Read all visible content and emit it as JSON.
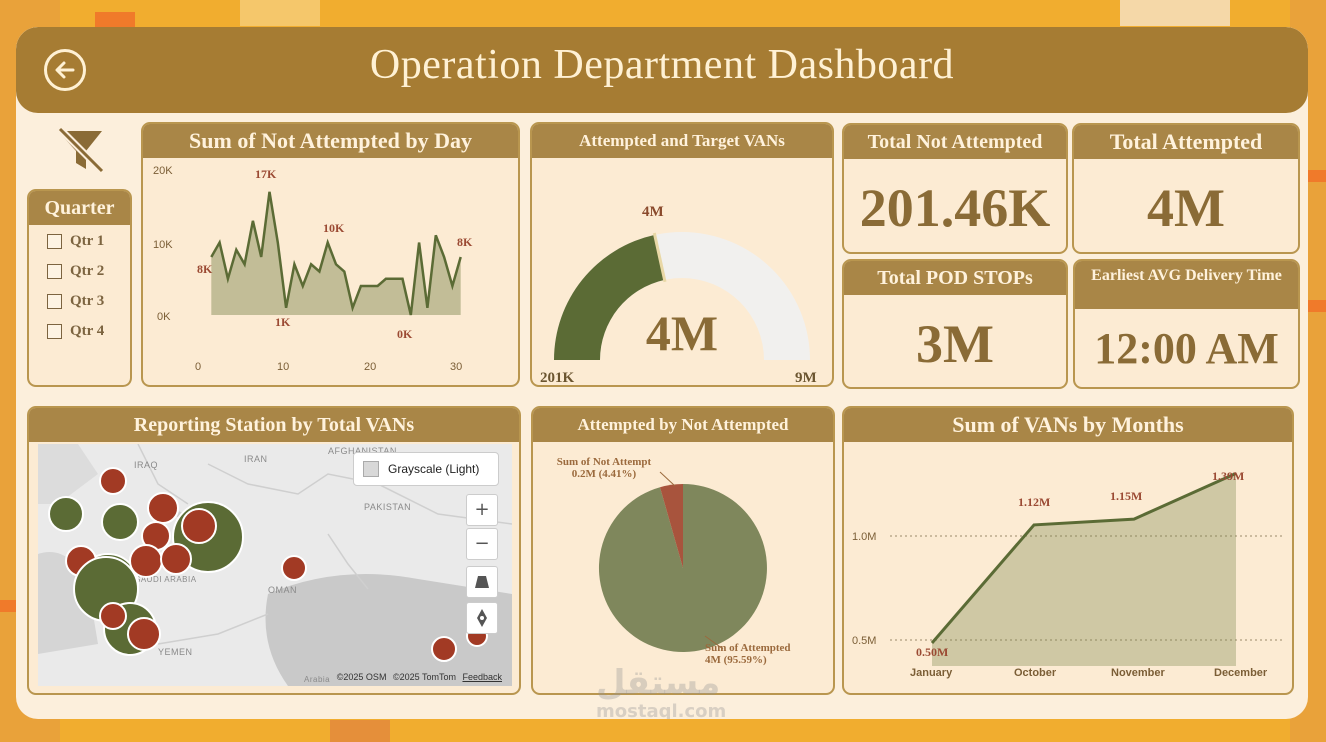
{
  "header": {
    "title": "Operation Department Dashboard",
    "back_icon": "arrow-left-icon"
  },
  "slicer": {
    "title": "Quarter",
    "items": [
      "Qtr 1",
      "Qtr 2",
      "Qtr 3",
      "Qtr 4"
    ],
    "clear_filter_icon": "filter-clear-icon"
  },
  "daily_chart": {
    "title": "Sum of Not Attempted by Day",
    "y_ticks": [
      "20K",
      "10K",
      "0K"
    ],
    "x_ticks": [
      "0",
      "10",
      "20",
      "30"
    ],
    "data_labels": [
      "17K",
      "10K",
      "8K",
      "8K",
      "1K",
      "0K"
    ]
  },
  "gauge": {
    "title": "Attempted and Target VANs",
    "value_label": "4M",
    "target_label": "4M",
    "min_label": "201K",
    "max_label": "9M"
  },
  "kpis": {
    "total_not_attempted": {
      "title": "Total Not Attempted",
      "value": "201.46K"
    },
    "total_attempted": {
      "title": "Total Attempted",
      "value": "4M"
    },
    "total_pod_stops": {
      "title": "Total POD STOPs",
      "value": "3M"
    },
    "earliest_delivery": {
      "title": "Earliest AVG Delivery Time",
      "value": "12:00 AM"
    }
  },
  "map": {
    "title": "Reporting Station by Total VANs",
    "style_button": "Grayscale (Light)",
    "labels": [
      "IRAQ",
      "IRAN",
      "AFGHANISTAN",
      "PAKISTAN",
      "SAUDI ARABIA",
      "OMAN",
      "YEMEN",
      "Arabia"
    ],
    "attribution": [
      "©2025 OSM",
      "©2025 TomTom",
      "Feedback"
    ],
    "zoom_in": "+",
    "zoom_out": "−"
  },
  "pie": {
    "title": "Attempted by Not Attempted",
    "slices": [
      {
        "label": "Sum of Not Attempt",
        "value": "0.2M (4.41%)"
      },
      {
        "label": "Sum of Attempted",
        "value": "4M (95.59%)"
      }
    ]
  },
  "months_chart": {
    "title": "Sum of VANs by Months",
    "y_ticks": [
      "1.0M",
      "0.5M"
    ],
    "categories": [
      "January",
      "October",
      "November",
      "December"
    ],
    "data_labels": [
      "0.50M",
      "1.12M",
      "1.15M",
      "1.39M"
    ]
  },
  "watermark": {
    "arabic": "مستقل",
    "latin": "mostaql.com"
  },
  "colors": {
    "header": "#a67c33",
    "card_header": "#a98647",
    "olive": "#5b6b35",
    "brick": "#a23a24",
    "kpi_text": "#8a6b36",
    "background": "#f1ad2f"
  },
  "chart_data": [
    {
      "type": "area",
      "title": "Sum of Not Attempted by Day",
      "x": [
        1,
        2,
        3,
        4,
        5,
        6,
        7,
        8,
        9,
        10,
        11,
        12,
        13,
        14,
        15,
        16,
        17,
        18,
        19,
        20,
        21,
        22,
        23,
        24,
        25,
        26,
        27,
        28,
        29,
        30,
        31
      ],
      "values": [
        8,
        10,
        5,
        9,
        7,
        13,
        8,
        17,
        10,
        1,
        7,
        4,
        7,
        6,
        10,
        7,
        6,
        1,
        4,
        4,
        4,
        5,
        5,
        5,
        0,
        10,
        1,
        11,
        8,
        4,
        8
      ],
      "ylim": [
        0,
        20
      ],
      "y_unit": "K",
      "xlim": [
        0,
        32
      ]
    },
    {
      "type": "line",
      "title": "Sum of VANs by Months",
      "categories": [
        "January",
        "October",
        "November",
        "December"
      ],
      "values": [
        0.5,
        1.12,
        1.15,
        1.39
      ],
      "ylim": [
        0.4,
        1.45
      ],
      "y_unit": "M"
    },
    {
      "type": "pie",
      "title": "Attempted by Not Attempted",
      "categories": [
        "Sum of Not Attempt",
        "Sum of Attempted"
      ],
      "values": [
        4.41,
        95.59
      ]
    },
    {
      "type": "gauge",
      "title": "Attempted and Target VANs",
      "value": 4,
      "target": 4,
      "min": 0.201,
      "max": 9
    }
  ],
  "map_points": [
    {
      "type": "brick",
      "size": 13
    },
    {
      "type": "olive",
      "size": 17
    },
    {
      "type": "olive",
      "size": 18
    },
    {
      "type": "brick",
      "size": 15
    },
    {
      "type": "olive",
      "size": 30
    },
    {
      "type": "brick",
      "size": 14
    },
    {
      "type": "olive",
      "size": 24
    },
    {
      "type": "brick",
      "size": 15
    },
    {
      "type": "olive",
      "size": 32
    },
    {
      "type": "brick",
      "size": 16
    },
    {
      "type": "olive",
      "size": 35
    },
    {
      "type": "brick",
      "size": 17
    },
    {
      "type": "brick",
      "size": 15
    },
    {
      "type": "olive",
      "size": 26
    },
    {
      "type": "brick",
      "size": 16
    },
    {
      "type": "brick",
      "size": 13
    },
    {
      "type": "brick",
      "size": 12
    },
    {
      "type": "brick",
      "size": 10
    }
  ]
}
